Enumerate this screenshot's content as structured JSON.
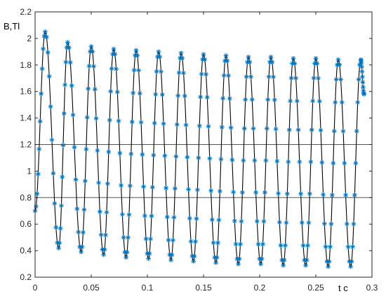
{
  "chart_data": {
    "type": "line",
    "title": "",
    "xlabel": "t c",
    "ylabel": "B,Tl",
    "xlim": [
      0,
      0.3
    ],
    "ylim": [
      0.2,
      2.2
    ],
    "x_ticks": [
      0,
      0.05,
      0.1,
      0.15,
      0.2,
      0.25,
      0.3
    ],
    "x_tick_labels": [
      "0",
      "0.05",
      "0.1",
      "0.15",
      "0.2",
      "0.25",
      "0.3"
    ],
    "y_ticks": [
      0.2,
      0.4,
      0.6,
      0.8,
      1,
      1.2,
      1.4,
      1.6,
      1.8,
      2,
      2.2
    ],
    "y_tick_labels": [
      "0.2",
      "0.4",
      "0.6",
      "0.8",
      "1",
      "1.2",
      "1.4",
      "1.6",
      "1.8",
      "2",
      "2.2"
    ],
    "grid": false,
    "reference_lines_y": [
      0.8,
      1.2
    ],
    "series": [
      {
        "line_color": "#000000",
        "marker": "asterisk",
        "marker_color": "#0072BD",
        "start": {
          "x": 0,
          "y": 0.7
        },
        "peaks": [
          {
            "x": 0.009,
            "y": 2.05
          },
          {
            "x": 0.029,
            "y": 1.97
          },
          {
            "x": 0.05,
            "y": 1.94
          },
          {
            "x": 0.07,
            "y": 1.92
          },
          {
            "x": 0.09,
            "y": 1.91
          },
          {
            "x": 0.11,
            "y": 1.9
          },
          {
            "x": 0.13,
            "y": 1.89
          },
          {
            "x": 0.15,
            "y": 1.88
          },
          {
            "x": 0.17,
            "y": 1.87
          },
          {
            "x": 0.19,
            "y": 1.86
          },
          {
            "x": 0.21,
            "y": 1.86
          },
          {
            "x": 0.23,
            "y": 1.85
          },
          {
            "x": 0.25,
            "y": 1.85
          },
          {
            "x": 0.27,
            "y": 1.84
          },
          {
            "x": 0.29,
            "y": 1.84
          }
        ],
        "troughs": [
          {
            "x": 0.021,
            "y": 0.42
          },
          {
            "x": 0.041,
            "y": 0.39
          },
          {
            "x": 0.061,
            "y": 0.37
          },
          {
            "x": 0.081,
            "y": 0.35
          },
          {
            "x": 0.101,
            "y": 0.34
          },
          {
            "x": 0.121,
            "y": 0.33
          },
          {
            "x": 0.141,
            "y": 0.32
          },
          {
            "x": 0.161,
            "y": 0.31
          },
          {
            "x": 0.181,
            "y": 0.3
          },
          {
            "x": 0.201,
            "y": 0.3
          },
          {
            "x": 0.221,
            "y": 0.29
          },
          {
            "x": 0.241,
            "y": 0.29
          },
          {
            "x": 0.261,
            "y": 0.28
          },
          {
            "x": 0.281,
            "y": 0.28
          }
        ],
        "end": {
          "x": 0.293,
          "y": 1.58
        }
      }
    ]
  }
}
